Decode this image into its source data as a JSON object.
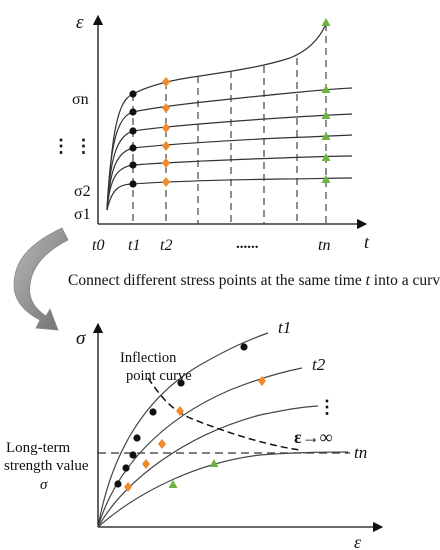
{
  "top_plot": {
    "y_axis_label": "ε",
    "x_axis_label": "t",
    "stress_labels": [
      "σn",
      "σ2",
      "σ1"
    ],
    "vertical_dots": "⋮  ⋮",
    "time_labels": [
      "t0",
      "t1",
      "t2",
      "......",
      "tn"
    ]
  },
  "caption": {
    "prefix": "Connect different stress points at the same time ",
    "italic": "t",
    "suffix": " into a curve"
  },
  "bottom_plot": {
    "y_axis_label": "σ",
    "x_axis_label": "ε",
    "curve_labels": [
      "t1",
      "t2",
      "tn"
    ],
    "inflection_label": [
      "Inflection",
      "point curve"
    ],
    "limit_label": "ε→∞",
    "dots": "⋮",
    "long_term_label": [
      "Long-term",
      "strength value",
      "σ"
    ]
  },
  "colors": {
    "t1_points": "#111111",
    "t2_points": "#f08a2c",
    "tn_points": "#6fb33f",
    "axis": "#111111",
    "arrow": "#8a8a8a"
  }
}
